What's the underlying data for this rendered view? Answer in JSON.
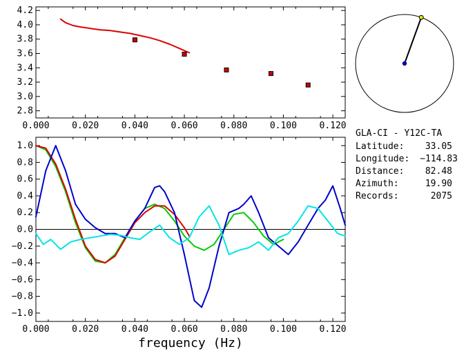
{
  "chart_data": [
    {
      "type": "line",
      "panel": "top",
      "xlim": [
        0.0,
        0.125
      ],
      "ylim": [
        2.7,
        4.25
      ],
      "x_ticks": [
        "0.000",
        "0.020",
        "0.040",
        "0.060",
        "0.080",
        "0.100",
        "0.120"
      ],
      "x_tick_values": [
        0.0,
        0.02,
        0.04,
        0.06,
        0.08,
        0.1,
        0.12
      ],
      "y_ticks": [
        "2.8",
        "3.0",
        "3.2",
        "3.4",
        "3.6",
        "3.8",
        "4.0",
        "4.2"
      ],
      "y_tick_values": [
        2.8,
        3.0,
        3.2,
        3.4,
        3.6,
        3.8,
        4.0,
        4.2
      ],
      "series": [
        {
          "kind": "line",
          "color": "#dd0000",
          "x": [
            0.01,
            0.012,
            0.015,
            0.018,
            0.022,
            0.026,
            0.03,
            0.034,
            0.038,
            0.042,
            0.046,
            0.05,
            0.054,
            0.058,
            0.062
          ],
          "y": [
            4.08,
            4.03,
            3.99,
            3.97,
            3.95,
            3.93,
            3.92,
            3.9,
            3.88,
            3.85,
            3.82,
            3.78,
            3.73,
            3.67,
            3.61
          ]
        },
        {
          "kind": "markers",
          "color": "#cc0000",
          "x": [
            0.04,
            0.06,
            0.077,
            0.095,
            0.11
          ],
          "y": [
            3.79,
            3.59,
            3.37,
            3.32,
            3.16
          ]
        }
      ]
    },
    {
      "type": "line",
      "panel": "bottom",
      "xlim": [
        0.0,
        0.125
      ],
      "ylim": [
        -1.1,
        1.1
      ],
      "xlabel": "frequency (Hz)",
      "x_ticks": [
        "0.000",
        "0.020",
        "0.040",
        "0.060",
        "0.080",
        "0.100",
        "0.120"
      ],
      "x_tick_values": [
        0.0,
        0.02,
        0.04,
        0.06,
        0.08,
        0.1,
        0.12
      ],
      "y_ticks": [
        "1.0",
        "0.8",
        "0.6",
        "0.4",
        "0.2",
        "0.0",
        "−0.2",
        "−0.4",
        "−0.6",
        "−0.8",
        "−1.0"
      ],
      "y_tick_values": [
        1.0,
        0.8,
        0.6,
        0.4,
        0.2,
        0.0,
        -0.2,
        -0.4,
        -0.6,
        -0.8,
        -1.0
      ],
      "zero_line": true,
      "series": [
        {
          "color": "#00cc00",
          "x": [
            0.0,
            0.004,
            0.008,
            0.012,
            0.016,
            0.02,
            0.024,
            0.028,
            0.032,
            0.036,
            0.04,
            0.044,
            0.048,
            0.052,
            0.056,
            0.06,
            0.064,
            0.068,
            0.072,
            0.076,
            0.08,
            0.084,
            0.088,
            0.092,
            0.096,
            0.1
          ],
          "y": [
            1.0,
            0.95,
            0.75,
            0.45,
            0.08,
            -0.22,
            -0.38,
            -0.4,
            -0.3,
            -0.1,
            0.1,
            0.25,
            0.3,
            0.25,
            0.1,
            -0.08,
            -0.2,
            -0.25,
            -0.18,
            0.0,
            0.18,
            0.2,
            0.08,
            -0.08,
            -0.18,
            -0.12
          ]
        },
        {
          "color": "#dd0000",
          "x": [
            0.0,
            0.004,
            0.008,
            0.012,
            0.016,
            0.02,
            0.024,
            0.028,
            0.032,
            0.036,
            0.04,
            0.044,
            0.048,
            0.052,
            0.056,
            0.06,
            0.062
          ],
          "y": [
            1.0,
            0.97,
            0.78,
            0.48,
            0.12,
            -0.2,
            -0.36,
            -0.4,
            -0.32,
            -0.12,
            0.08,
            0.2,
            0.28,
            0.28,
            0.18,
            0.02,
            -0.08
          ]
        },
        {
          "color": "#0000cc",
          "x": [
            0.0,
            0.004,
            0.008,
            0.012,
            0.016,
            0.02,
            0.024,
            0.028,
            0.032,
            0.036,
            0.04,
            0.044,
            0.048,
            0.05,
            0.052,
            0.056,
            0.06,
            0.064,
            0.067,
            0.07,
            0.074,
            0.078,
            0.082,
            0.084,
            0.087,
            0.09,
            0.094,
            0.098,
            0.102,
            0.106,
            0.11,
            0.114,
            0.117,
            0.12,
            0.123,
            0.125
          ],
          "y": [
            0.15,
            0.7,
            1.0,
            0.7,
            0.3,
            0.12,
            0.02,
            -0.05,
            -0.05,
            -0.1,
            0.1,
            0.25,
            0.5,
            0.52,
            0.45,
            0.2,
            -0.3,
            -0.85,
            -0.93,
            -0.7,
            -0.2,
            0.2,
            0.25,
            0.3,
            0.4,
            0.2,
            -0.1,
            -0.2,
            -0.3,
            -0.15,
            0.05,
            0.25,
            0.35,
            0.52,
            0.25,
            0.05
          ]
        },
        {
          "color": "#00e5e5",
          "x": [
            0.0,
            0.003,
            0.006,
            0.01,
            0.014,
            0.018,
            0.022,
            0.026,
            0.03,
            0.034,
            0.038,
            0.042,
            0.046,
            0.05,
            0.054,
            0.058,
            0.062,
            0.066,
            0.07,
            0.074,
            0.078,
            0.082,
            0.086,
            0.09,
            0.094,
            0.098,
            0.102,
            0.106,
            0.11,
            0.114,
            0.118,
            0.122,
            0.125
          ],
          "y": [
            -0.05,
            -0.18,
            -0.12,
            -0.24,
            -0.15,
            -0.12,
            -0.1,
            -0.08,
            -0.06,
            -0.07,
            -0.1,
            -0.12,
            -0.03,
            0.05,
            -0.1,
            -0.18,
            -0.1,
            0.15,
            0.28,
            0.05,
            -0.3,
            -0.25,
            -0.22,
            -0.15,
            -0.25,
            -0.1,
            -0.05,
            0.1,
            0.28,
            0.25,
            0.1,
            -0.05,
            -0.08
          ]
        }
      ]
    }
  ],
  "compass": {
    "azimuth_deg": 19.9,
    "ring_color": "#000000",
    "needle_color": "#000000",
    "center_dot_color": "#0000cc",
    "tip_dot_color": "#e5e500"
  },
  "info": {
    "station": "GLA-CI - Y12C-TA",
    "latitude_label": "Latitude:",
    "latitude_value": "33.05",
    "longitude_label": "Longitude:",
    "longitude_value": "−114.83",
    "distance_label": "Distance:",
    "distance_value": "82.48",
    "azimuth_label": "Azimuth:",
    "azimuth_value": "19.90",
    "records_label": "Records:",
    "records_value": "2075"
  }
}
